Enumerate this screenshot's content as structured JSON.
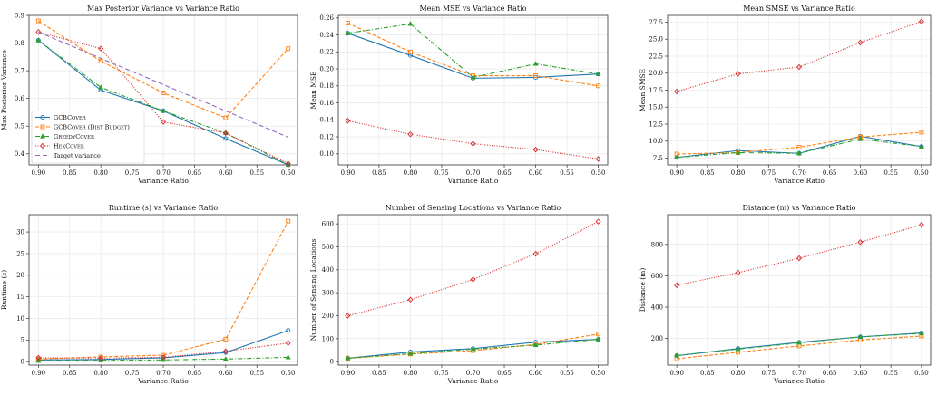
{
  "chart_data": [
    {
      "type": "line",
      "title": "Max Posterior Variance vs Variance Ratio",
      "xlabel": "Variance Ratio",
      "ylabel": "Max Posterior Variance",
      "x": [
        0.9,
        0.8,
        0.7,
        0.6,
        0.5
      ],
      "xticks": [
        "0.90",
        "0.85",
        "0.80",
        "0.75",
        "0.70",
        "0.65",
        "0.60",
        "0.55",
        "0.50"
      ],
      "yticks": [
        "0.4",
        "0.5",
        "0.6",
        "0.7",
        "0.8",
        "0.9"
      ],
      "xlim": [
        0.915,
        0.485
      ],
      "ylim": [
        0.36,
        0.9
      ],
      "grid": true,
      "legend": "bottom-left",
      "series": [
        {
          "name": "GCBCover",
          "values": [
            0.81,
            0.63,
            0.555,
            0.455,
            0.36
          ]
        },
        {
          "name": "GCBCover (Dist Budget)",
          "values": [
            0.88,
            0.735,
            0.62,
            0.53,
            0.78
          ]
        },
        {
          "name": "GreedyCover",
          "values": [
            0.81,
            0.64,
            0.555,
            0.475,
            0.36
          ]
        },
        {
          "name": "HexCover",
          "values": [
            0.84,
            0.78,
            0.515,
            0.475,
            0.365
          ]
        },
        {
          "name": "Target variance",
          "values": [
            0.84,
            0.745,
            0.65,
            0.555,
            0.46
          ]
        }
      ]
    },
    {
      "type": "line",
      "title": "Mean MSE vs Variance Ratio",
      "xlabel": "Variance Ratio",
      "ylabel": "Mean MSE",
      "x": [
        0.9,
        0.8,
        0.7,
        0.6,
        0.5
      ],
      "xticks": [
        "0.90",
        "0.85",
        "0.80",
        "0.75",
        "0.70",
        "0.65",
        "0.60",
        "0.55",
        "0.50"
      ],
      "yticks": [
        "0.10",
        "0.12",
        "0.14",
        "0.16",
        "0.18",
        "0.20",
        "0.22",
        "0.24",
        "0.26"
      ],
      "xlim": [
        0.915,
        0.485
      ],
      "ylim": [
        0.087,
        0.263
      ],
      "grid": true,
      "series": [
        {
          "name": "GCBCover",
          "values": [
            0.242,
            0.216,
            0.189,
            0.19,
            0.194
          ]
        },
        {
          "name": "GCBCover (Dist Budget)",
          "values": [
            0.254,
            0.22,
            0.192,
            0.192,
            0.18
          ]
        },
        {
          "name": "GreedyCover",
          "values": [
            0.242,
            0.253,
            0.19,
            0.206,
            0.194
          ]
        },
        {
          "name": "HexCover",
          "values": [
            0.139,
            0.123,
            0.112,
            0.105,
            0.094
          ]
        }
      ]
    },
    {
      "type": "line",
      "title": "Mean SMSE vs Variance Ratio",
      "xlabel": "Variance Ratio",
      "ylabel": "Mean SMSE",
      "x": [
        0.9,
        0.8,
        0.7,
        0.6,
        0.5
      ],
      "xticks": [
        "0.90",
        "0.85",
        "0.80",
        "0.75",
        "0.70",
        "0.65",
        "0.60",
        "0.55",
        "0.50"
      ],
      "yticks": [
        "7.5",
        "10.0",
        "12.5",
        "15.0",
        "17.5",
        "20.0",
        "22.5",
        "25.0",
        "27.5"
      ],
      "xlim": [
        0.915,
        0.485
      ],
      "ylim": [
        6.5,
        28.5
      ],
      "grid": true,
      "series": [
        {
          "name": "GCBCover",
          "values": [
            7.6,
            8.6,
            8.2,
            10.7,
            9.2
          ]
        },
        {
          "name": "GCBCover (Dist Budget)",
          "values": [
            8.1,
            8.3,
            9.1,
            10.6,
            11.3
          ]
        },
        {
          "name": "GreedyCover",
          "values": [
            7.6,
            8.3,
            8.2,
            10.3,
            9.2
          ]
        },
        {
          "name": "HexCover",
          "values": [
            17.3,
            19.9,
            20.9,
            24.5,
            27.6
          ]
        }
      ]
    },
    {
      "type": "line",
      "title": "Runtime (s) vs Variance Ratio",
      "xlabel": "Variance Ratio",
      "ylabel": "Runtime (s)",
      "x": [
        0.9,
        0.8,
        0.7,
        0.6,
        0.5
      ],
      "xticks": [
        "0.90",
        "0.85",
        "0.80",
        "0.75",
        "0.70",
        "0.65",
        "0.60",
        "0.55",
        "0.50"
      ],
      "yticks": [
        "0",
        "5",
        "10",
        "15",
        "20",
        "25",
        "30"
      ],
      "xlim": [
        0.915,
        0.485
      ],
      "ylim": [
        -0.8,
        34
      ],
      "grid": true,
      "series": [
        {
          "name": "GCBCover",
          "values": [
            0.4,
            0.5,
            0.9,
            2.1,
            7.2
          ]
        },
        {
          "name": "GCBCover (Dist Budget)",
          "values": [
            0.6,
            1.1,
            1.5,
            5.2,
            32.5
          ]
        },
        {
          "name": "GreedyCover",
          "values": [
            0.2,
            0.3,
            0.4,
            0.6,
            1.0
          ]
        },
        {
          "name": "HexCover",
          "values": [
            0.9,
            0.8,
            1.0,
            2.4,
            4.3
          ]
        }
      ]
    },
    {
      "type": "line",
      "title": "Number of Sensing Locations vs Variance Ratio",
      "xlabel": "Variance Ratio",
      "ylabel": "Number of Sensing Locations",
      "x": [
        0.9,
        0.8,
        0.7,
        0.6,
        0.5
      ],
      "xticks": [
        "0.90",
        "0.85",
        "0.80",
        "0.75",
        "0.70",
        "0.65",
        "0.60",
        "0.55",
        "0.50"
      ],
      "yticks": [
        "0",
        "100",
        "200",
        "300",
        "400",
        "500",
        "600"
      ],
      "xlim": [
        0.915,
        0.485
      ],
      "ylim": [
        -15,
        640
      ],
      "grid": true,
      "series": [
        {
          "name": "GCBCover",
          "values": [
            15,
            42,
            57,
            85,
            97
          ]
        },
        {
          "name": "GCBCover (Dist Budget)",
          "values": [
            14,
            33,
            48,
            75,
            120
          ]
        },
        {
          "name": "GreedyCover",
          "values": [
            15,
            35,
            55,
            72,
            97
          ]
        },
        {
          "name": "HexCover",
          "values": [
            200,
            270,
            358,
            470,
            610
          ]
        }
      ]
    },
    {
      "type": "line",
      "title": "Distance (m) vs Variance Ratio",
      "xlabel": "Variance Ratio",
      "ylabel": "Distance (m)",
      "x": [
        0.9,
        0.8,
        0.7,
        0.6,
        0.5
      ],
      "xticks": [
        "0.90",
        "0.85",
        "0.80",
        "0.75",
        "0.70",
        "0.65",
        "0.60",
        "0.55",
        "0.50"
      ],
      "yticks": [
        "200",
        "400",
        "600",
        "800"
      ],
      "xlim": [
        0.915,
        0.485
      ],
      "ylim": [
        30,
        990
      ],
      "grid": true,
      "series": [
        {
          "name": "GCBCover",
          "values": [
            90,
            135,
            175,
            210,
            235
          ]
        },
        {
          "name": "GCBCover (Dist Budget)",
          "values": [
            70,
            112,
            152,
            190,
            215
          ]
        },
        {
          "name": "GreedyCover",
          "values": [
            92,
            132,
            172,
            210,
            232
          ]
        },
        {
          "name": "HexCover",
          "values": [
            540,
            620,
            712,
            815,
            925
          ]
        }
      ]
    }
  ],
  "styles": [
    {
      "color": "#1f77b4",
      "dash": "",
      "marker": "circle"
    },
    {
      "color": "#ff7f0e",
      "dash": "4,2",
      "marker": "square"
    },
    {
      "color": "#2ca02c",
      "dash": "5,2,1,2",
      "marker": "triangle"
    },
    {
      "color": "#d62728",
      "dash": "1,1.6",
      "marker": "diamond"
    },
    {
      "color": "#9467bd",
      "dash": "5,3",
      "marker": "none"
    }
  ]
}
